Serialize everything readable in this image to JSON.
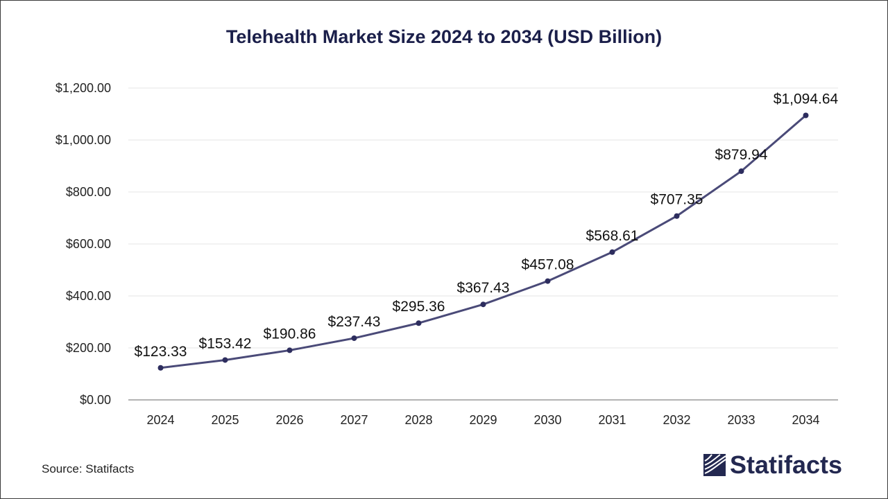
{
  "chart_data": {
    "type": "line",
    "title": "Telehealth Market Size 2024 to 2034 (USD Billion)",
    "categories": [
      "2024",
      "2025",
      "2026",
      "2027",
      "2028",
      "2029",
      "2030",
      "2031",
      "2032",
      "2033",
      "2034"
    ],
    "values": [
      123.33,
      153.42,
      190.86,
      237.43,
      295.36,
      367.43,
      457.08,
      568.61,
      707.35,
      879.94,
      1094.64
    ],
    "data_labels": [
      "$123.33",
      "$153.42",
      "$190.86",
      "$237.43",
      "$295.36",
      "$367.43",
      "$457.08",
      "$568.61",
      "$707.35",
      "$879.94",
      "$1,094.64"
    ],
    "y_ticks": [
      0,
      200,
      400,
      600,
      800,
      1000,
      1200
    ],
    "y_tick_labels": [
      "$0.00",
      "$200.00",
      "$400.00",
      "$600.00",
      "$800.00",
      "$1,000.00",
      "$1,200.00"
    ],
    "ylim": [
      0,
      1200
    ],
    "xlabel": "",
    "ylabel": "",
    "grid": true,
    "legend": "none",
    "colors": {
      "line": "#4a4a78",
      "marker": "#2d2d5e",
      "grid": "#e6e6e6",
      "axis": "#9a9a9a",
      "title": "#1b1f4a"
    }
  },
  "footer": {
    "source": "Source: Statifacts",
    "brand": "Statifacts"
  }
}
